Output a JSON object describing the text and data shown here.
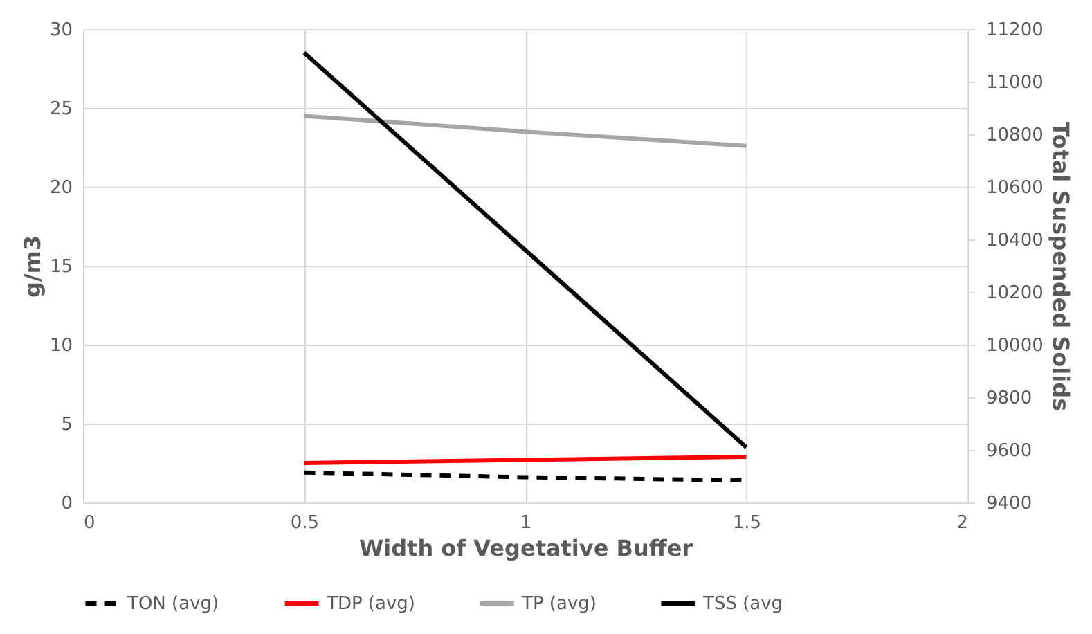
{
  "chart_data": {
    "type": "line",
    "xlabel": "Width of Vegetative Buffer",
    "ylabel": "g/m3",
    "y2label": "Total Suspended Solids",
    "x": [
      0.5,
      1,
      1.5
    ],
    "xlim": [
      0,
      2
    ],
    "xticks": [
      0,
      0.5,
      1,
      1.5,
      2
    ],
    "ylim": [
      0,
      30
    ],
    "yticks": [
      0,
      5,
      10,
      15,
      20,
      25,
      30
    ],
    "y2lim": [
      9400,
      11200
    ],
    "y2ticks": [
      9400,
      9600,
      9800,
      10000,
      10200,
      10400,
      10600,
      10800,
      11000,
      11200
    ],
    "grid": true,
    "legend": "bottom",
    "series": [
      {
        "name": "TON (avg)",
        "color": "#000000",
        "line_style": "dashed",
        "values": [
          1.9,
          1.6,
          1.4
        ]
      },
      {
        "name": "TDP (avg)",
        "color": "#ff0000",
        "line_style": "solid",
        "values": [
          2.5,
          2.7,
          2.9
        ]
      },
      {
        "name": "TP (avg)",
        "color": "#a6a6a6",
        "line_style": "solid",
        "values": [
          24.5,
          23.5,
          22.6
        ]
      },
      {
        "name": "TSS (avg",
        "color": "#000000",
        "line_style": "solid",
        "axis": "y2",
        "values": [
          11110,
          10360,
          9610
        ]
      }
    ]
  }
}
